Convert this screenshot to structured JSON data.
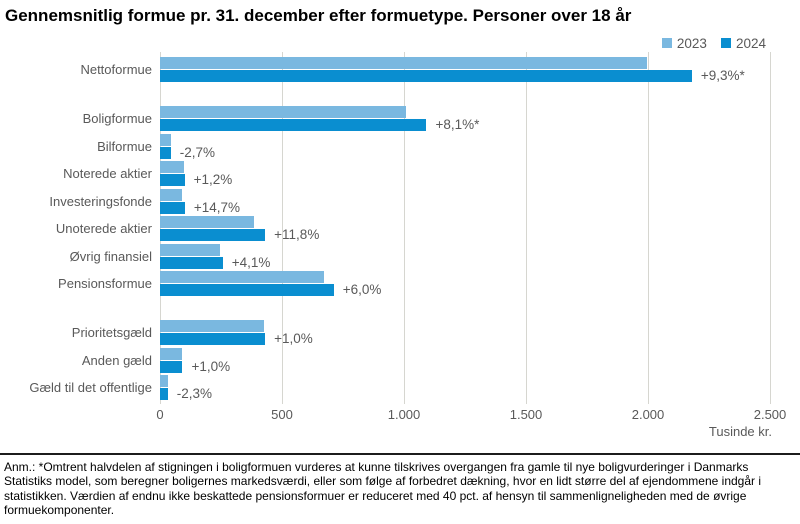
{
  "title": "Gennemsnitlig formue pr. 31. december efter formuetype. Personer over 18 år",
  "legend": {
    "items": [
      {
        "label": "2023"
      },
      {
        "label": "2024"
      }
    ]
  },
  "colors": {
    "y2023": "#7ab8e0",
    "y2024": "#0a8ed0",
    "gridline": "#d6d6d0",
    "text_gray": "#595959"
  },
  "chart_data": {
    "type": "bar",
    "orientation": "horizontal",
    "title": "Gennemsnitlig formue pr. 31. december efter formuetype. Personer over 18 år",
    "xlabel": "Tusinde kr.",
    "xlim": [
      0,
      2500
    ],
    "x_ticks": [
      0,
      500,
      1000,
      1500,
      2000,
      2500
    ],
    "x_tick_labels": [
      "0",
      "500",
      "1.000",
      "1.500",
      "2.000",
      "2.500"
    ],
    "grid": "vertical",
    "legend_position": "top-right",
    "series_names": [
      "2023",
      "2024"
    ],
    "categories": [
      {
        "label": "Nettoformue",
        "v2023": 1995,
        "v2024": 2180,
        "change": "+9,3%*",
        "group": 0
      },
      {
        "label": "Boligformue",
        "v2023": 1010,
        "v2024": 1092,
        "change": "+8,1%*",
        "group": 1
      },
      {
        "label": "Bilformue",
        "v2023": 45,
        "v2024": 44,
        "change": "-2,7%",
        "group": 1
      },
      {
        "label": "Noterede aktier",
        "v2023": 100,
        "v2024": 101,
        "change": "+1,2%",
        "group": 1
      },
      {
        "label": "Investeringsfonde",
        "v2023": 89,
        "v2024": 102,
        "change": "+14,7%",
        "group": 1
      },
      {
        "label": "Unoterede aktier",
        "v2023": 386,
        "v2024": 431,
        "change": "+11,8%",
        "group": 1
      },
      {
        "label": "Øvrig finansiel",
        "v2023": 247,
        "v2024": 257,
        "change": "+4,1%",
        "group": 1
      },
      {
        "label": "Pensionsformue",
        "v2023": 672,
        "v2024": 712,
        "change": "+6,0%",
        "group": 1
      },
      {
        "label": "Prioritetsgæld",
        "v2023": 427,
        "v2024": 431,
        "change": "+1,0%",
        "group": 2
      },
      {
        "label": "Anden gæld",
        "v2023": 91,
        "v2024": 92,
        "change": "+1,0%",
        "group": 2
      },
      {
        "label": "Gæld til det offentlige",
        "v2023": 33,
        "v2024": 32,
        "change": "-2,3%",
        "group": 2
      }
    ]
  },
  "footnote": "Anm.: *Omtrent halvdelen af stigningen i boligformuen vurderes at kunne tilskrives overgangen fra gamle til nye boligvurderinger i Danmarks Statistiks model, som beregner boligernes markedsværdi, eller som følge af forbedret dækning, hvor en lidt større del af ejendommene indgår i statistikken. Værdien af endnu ikke beskattede pensionsformuer er reduceret med 40 pct. af hensyn til sammenligneligheden med de øvrige formuekomponenter."
}
